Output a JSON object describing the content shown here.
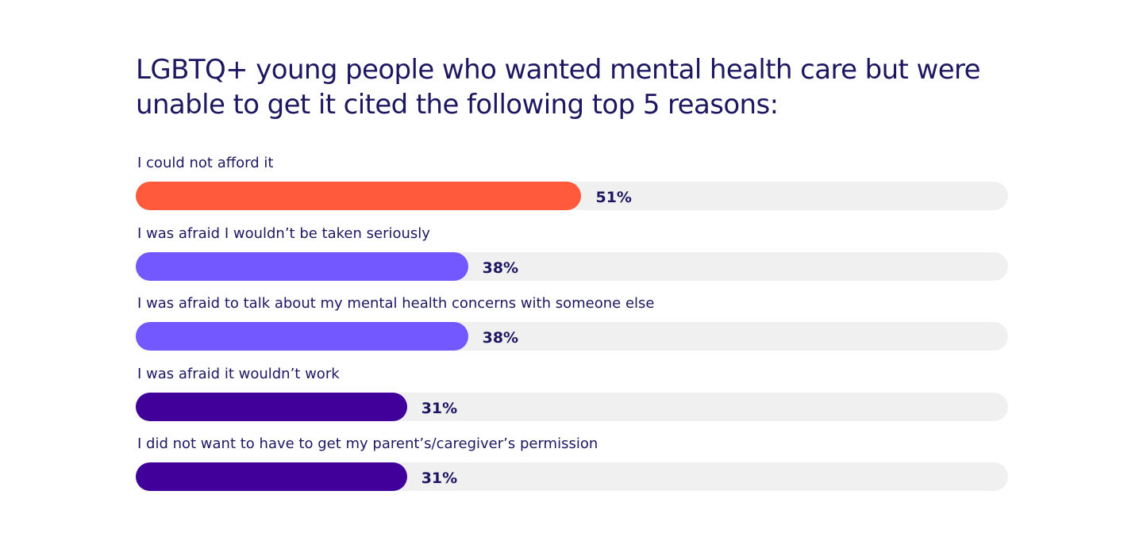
{
  "chart_data": {
    "type": "bar",
    "orientation": "horizontal",
    "title": "LGBTQ+ young people who wanted mental health care but were\nunable to get it cited the following top 5 reasons:",
    "categories": [
      "I could not afford it",
      "I was afraid I wouldn’t be taken seriously",
      "I was afraid to talk about my mental health concerns with someone else",
      "I was afraid it wouldn’t work",
      "I did not want to have to get my parent’s/caregiver’s permission"
    ],
    "values": [
      51,
      38,
      38,
      31,
      31
    ],
    "value_labels": [
      "51%",
      "38%",
      "38%",
      "31%",
      "31%"
    ],
    "unit": "%",
    "xlim": [
      0,
      100
    ],
    "bar_colors": [
      "#ff5a3c",
      "#7357ff",
      "#7357ff",
      "#42009b",
      "#42009b"
    ],
    "track_color": "#f0f0f0",
    "text_color": "#1c1760",
    "grid": false,
    "legend": "none"
  }
}
